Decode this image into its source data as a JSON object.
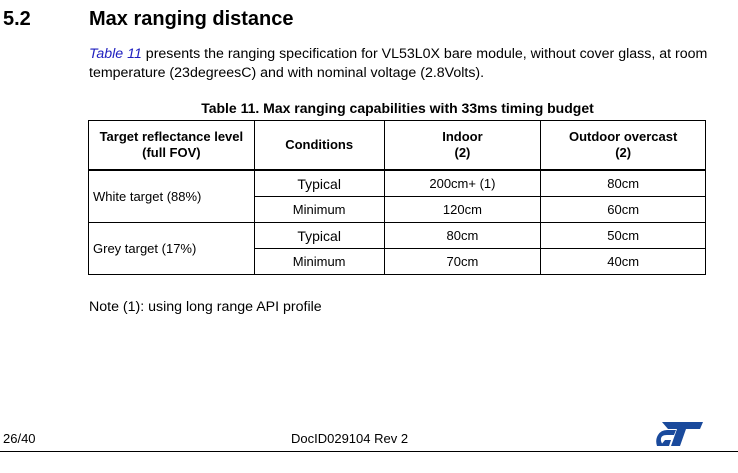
{
  "section": {
    "number": "5.2",
    "title": "Max ranging distance"
  },
  "intro": {
    "link_text": "Table 11",
    "text": " presents the ranging specification for VL53L0X bare module, without cover glass, at room temperature (23degreesC) and with nominal voltage (2.8Volts)."
  },
  "table": {
    "caption": "Table 11. Max ranging capabilities with 33ms timing budget",
    "headers": {
      "target_line1": "Target reflectance level",
      "target_line2": "(full FOV)",
      "conditions": "Conditions",
      "indoor_line1": "Indoor",
      "indoor_line2": "(2)",
      "outdoor_line1": "Outdoor overcast",
      "outdoor_line2": "(2)"
    },
    "rows": [
      {
        "target": "White target (88%)",
        "typical": {
          "condition": "Typical",
          "indoor": "200cm+ (1)",
          "outdoor": "80cm"
        },
        "minimum": {
          "condition": "Minimum",
          "indoor": "120cm",
          "outdoor": "60cm"
        }
      },
      {
        "target": "Grey target (17%)",
        "typical": {
          "condition": "Typical",
          "indoor": "80cm",
          "outdoor": "50cm"
        },
        "minimum": {
          "condition": "Minimum",
          "indoor": "70cm",
          "outdoor": "40cm"
        }
      }
    ]
  },
  "note": "Note (1): using long range API profile",
  "footer": {
    "page": "26/40",
    "doc_id": "DocID029104 Rev 2",
    "logo_icon": "st-logo-icon",
    "logo_color": "#1a4a9c"
  }
}
